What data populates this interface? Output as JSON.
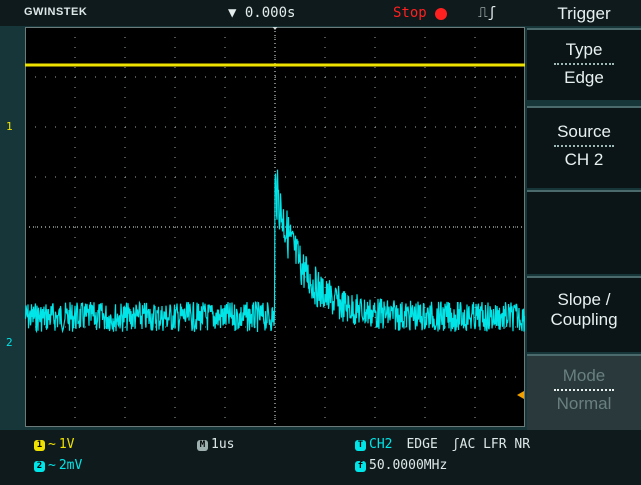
{
  "header": {
    "brand": "GWINSTEK",
    "time_position": "▼ 0.000s",
    "run_state": "Stop",
    "trigger_symbol": "⎍ʃ"
  },
  "menu": {
    "title": "Trigger",
    "items": [
      {
        "line1": "Type",
        "line2": "Edge",
        "enabled": true
      },
      {
        "line1": "Source",
        "line2": "CH 2",
        "enabled": true
      },
      {
        "line1": "",
        "line2": "",
        "enabled": true
      },
      {
        "line1": "Slope /",
        "line2": "Coupling",
        "enabled": true
      },
      {
        "line1": "Mode",
        "line2": "Normal",
        "enabled": false
      }
    ]
  },
  "channels": {
    "ch1": {
      "badge": "1",
      "coupling": "~",
      "scale": "1V",
      "color": "#f0e200",
      "marker": "1"
    },
    "ch2": {
      "badge": "2",
      "coupling": "~",
      "scale": "2mV",
      "color": "#00e5e8",
      "marker": "2"
    }
  },
  "timebase": {
    "badge": "M",
    "value": "1us"
  },
  "trigger_info": {
    "badge": "T",
    "source": "CH2",
    "type": "EDGE",
    "settings": "ʃAC LFR NR",
    "freq_badge": "f",
    "frequency": "50.0000MHz"
  },
  "colors": {
    "ch1": "#f0e200",
    "ch2": "#00e5e8",
    "grid": "#9aa6a6",
    "stop": "#ff2020",
    "trigger_level": "#f0a000"
  }
}
